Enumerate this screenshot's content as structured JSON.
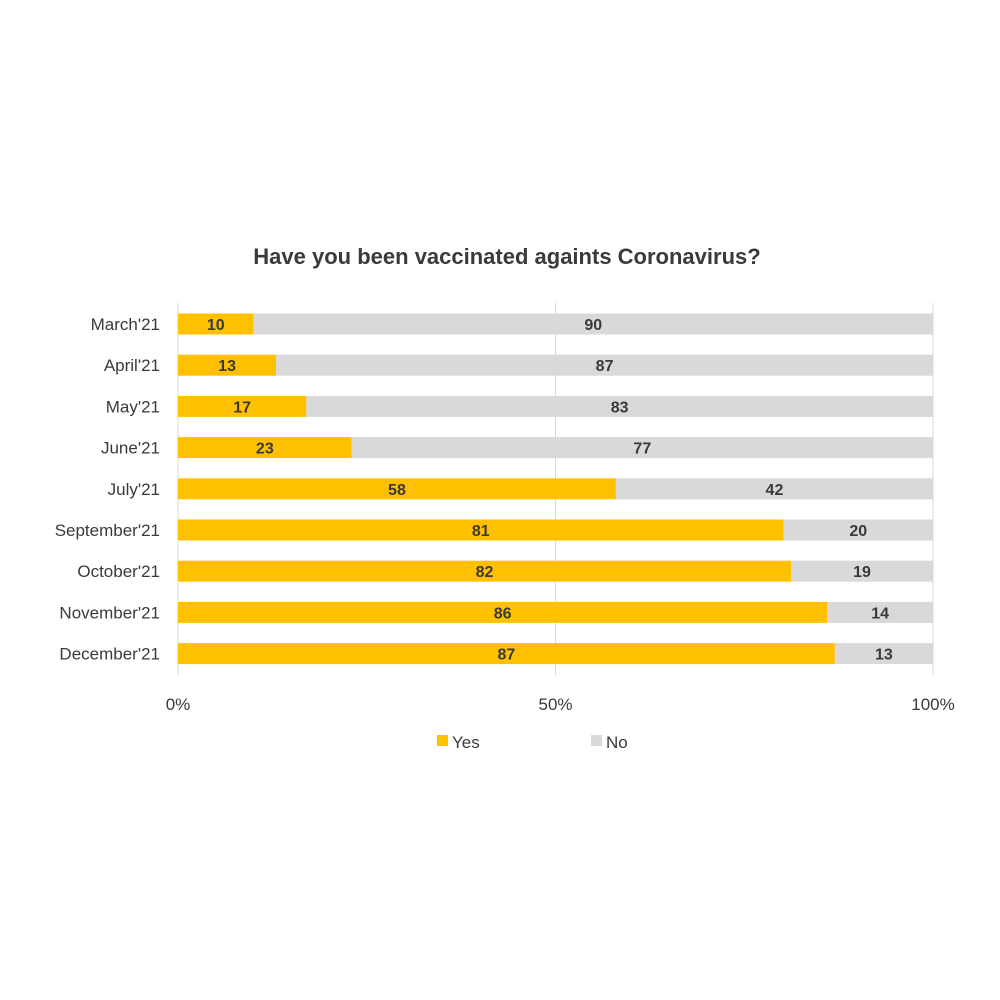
{
  "colors": {
    "yes": "#FFC000",
    "no": "#D9D9D9",
    "grid": "#D9D9D9",
    "text": "#3a3a3a"
  },
  "chart_data": {
    "type": "bar",
    "orientation": "horizontal",
    "stacked": "percent",
    "title": "Have you been vaccinated againts Coronavirus?",
    "categories": [
      "March'21",
      "April'21",
      "May'21",
      "June'21",
      "July'21",
      "September'21",
      "October'21",
      "November'21",
      "December'21"
    ],
    "series": [
      {
        "name": "Yes",
        "values": [
          10,
          13,
          17,
          23,
          58,
          81,
          82,
          86,
          87
        ]
      },
      {
        "name": "No",
        "values": [
          90,
          87,
          83,
          77,
          42,
          20,
          19,
          14,
          13
        ]
      }
    ],
    "xticks": [
      "0%",
      "50%",
      "100%"
    ],
    "xlim": [
      0,
      100
    ],
    "grid": true,
    "legend_position": "bottom"
  }
}
